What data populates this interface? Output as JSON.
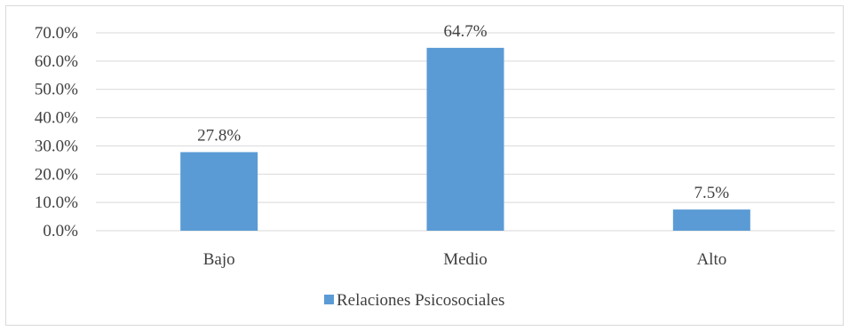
{
  "chart_data": {
    "type": "bar",
    "categories": [
      "Bajo",
      "Medio",
      "Alto"
    ],
    "series": [
      {
        "name": "Relaciones Psicosociales",
        "values": [
          27.8,
          64.7,
          7.5
        ],
        "color": "#5b9bd5"
      }
    ],
    "data_labels": [
      "27.8%",
      "64.7%",
      "7.5%"
    ],
    "ylim": [
      0,
      70
    ],
    "y_ticks": [
      0,
      10,
      20,
      30,
      40,
      50,
      60,
      70
    ],
    "y_tick_labels": [
      "0.0%",
      "10.0%",
      "20.0%",
      "30.0%",
      "40.0%",
      "50.0%",
      "60.0%",
      "70.0%"
    ],
    "grid": true,
    "legend_position": "bottom",
    "colors": {
      "bar": "#5b9bd5",
      "gridline": "#d9d9d9",
      "text": "#404040"
    }
  }
}
